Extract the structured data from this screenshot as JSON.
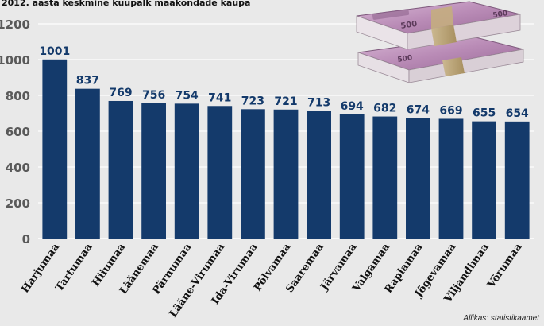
{
  "chart_data": {
    "type": "bar",
    "title": "2012. aasta keskmine kuupalk maakondade kaupa",
    "xlabel": "",
    "ylabel": "",
    "categories": [
      "Harjumaa",
      "Tartumaa",
      "Hiiumaa",
      "Läänemaa",
      "Pärnumaa",
      "Lääne-Virumaa",
      "Ida-Virumaa",
      "Põlvamaa",
      "Saaremaa",
      "Järvamaa",
      "Valgamaa",
      "Raplamaa",
      "Jõgevamaa",
      "Viljandimaa",
      "Võrumaa"
    ],
    "values": [
      1001,
      837,
      769,
      756,
      754,
      741,
      723,
      721,
      713,
      694,
      682,
      674,
      669,
      655,
      654
    ],
    "ylim": [
      0,
      1200
    ],
    "yticks": [
      0,
      200,
      400,
      600,
      800,
      1000,
      1200
    ],
    "grid": true,
    "bar_color": "#143a6b",
    "grid_color": "#ffffff",
    "source": "Allikas: statistikaamet"
  },
  "decoration": {
    "banknote_label": "500"
  }
}
